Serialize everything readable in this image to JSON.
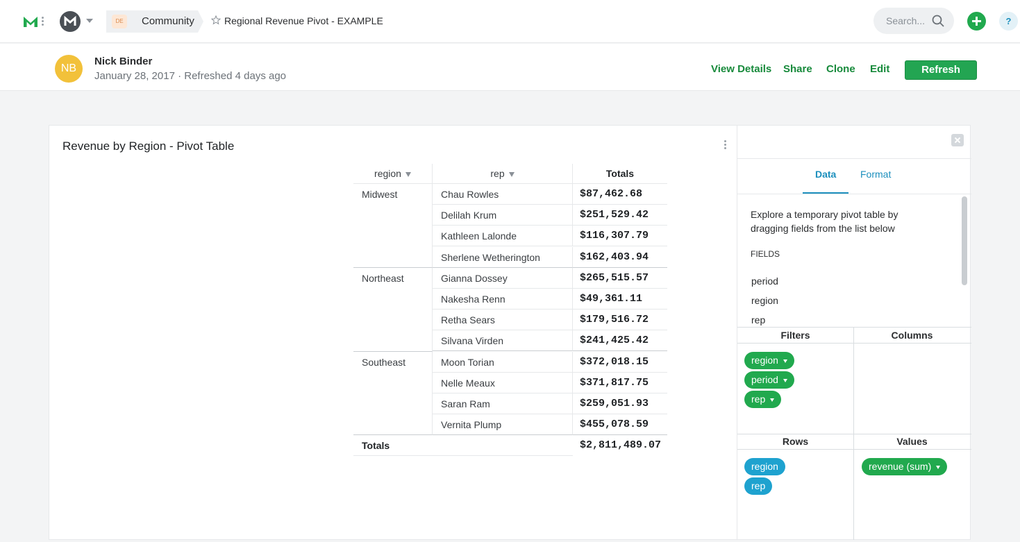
{
  "topbar": {
    "org_badge": "DE",
    "breadcrumb": "Community",
    "title": "Regional Revenue Pivot - EXAMPLE",
    "search_placeholder": "Search...",
    "help_label": "?"
  },
  "header": {
    "initials": "NB",
    "author": "Nick Binder",
    "meta": "January 28, 2017 · Refreshed 4 days ago",
    "actions": {
      "view_details": "View Details",
      "share": "Share",
      "clone": "Clone",
      "edit": "Edit",
      "refresh": "Refresh"
    }
  },
  "card": {
    "title": "Revenue by Region - Pivot Table",
    "table": {
      "headers": {
        "region": "region",
        "rep": "rep",
        "totals": "Totals"
      },
      "groups": [
        {
          "region": "Midwest",
          "rows": [
            {
              "rep": "Chau Rowles",
              "total": "$87,462.68"
            },
            {
              "rep": "Delilah Krum",
              "total": "$251,529.42"
            },
            {
              "rep": "Kathleen Lalonde",
              "total": "$116,307.79"
            },
            {
              "rep": "Sherlene Wetherington",
              "total": "$162,403.94"
            }
          ]
        },
        {
          "region": "Northeast",
          "rows": [
            {
              "rep": "Gianna Dossey",
              "total": "$265,515.57"
            },
            {
              "rep": "Nakesha Renn",
              "total": "$49,361.11"
            },
            {
              "rep": "Retha Sears",
              "total": "$179,516.72"
            },
            {
              "rep": "Silvana Virden",
              "total": "$241,425.42"
            }
          ]
        },
        {
          "region": "Southeast",
          "rows": [
            {
              "rep": "Moon Torian",
              "total": "$372,018.15"
            },
            {
              "rep": "Nelle Meaux",
              "total": "$371,817.75"
            },
            {
              "rep": "Saran Ram",
              "total": "$259,051.93"
            },
            {
              "rep": "Vernita Plump",
              "total": "$455,078.59"
            }
          ]
        }
      ],
      "grand_total_label": "Totals",
      "grand_total": "$2,811,489.07"
    }
  },
  "panel": {
    "tabs": {
      "data": "Data",
      "format": "Format"
    },
    "description": "Explore a temporary pivot table by dragging fields from the list below",
    "fields_title": "FIELDS",
    "fields": [
      "period",
      "region",
      "rep"
    ],
    "zones": {
      "filters": {
        "title": "Filters",
        "pills": [
          "region",
          "period",
          "rep"
        ]
      },
      "columns": {
        "title": "Columns",
        "pills": []
      },
      "rows": {
        "title": "Rows",
        "pills": [
          "region",
          "rep"
        ]
      },
      "values": {
        "title": "Values",
        "pills": [
          "revenue (sum)"
        ]
      }
    }
  },
  "colors": {
    "accent_green": "#21a94e",
    "accent_blue": "#1ea2cf",
    "link_green": "#178a3b",
    "avatar_yellow": "#f2c13a"
  }
}
